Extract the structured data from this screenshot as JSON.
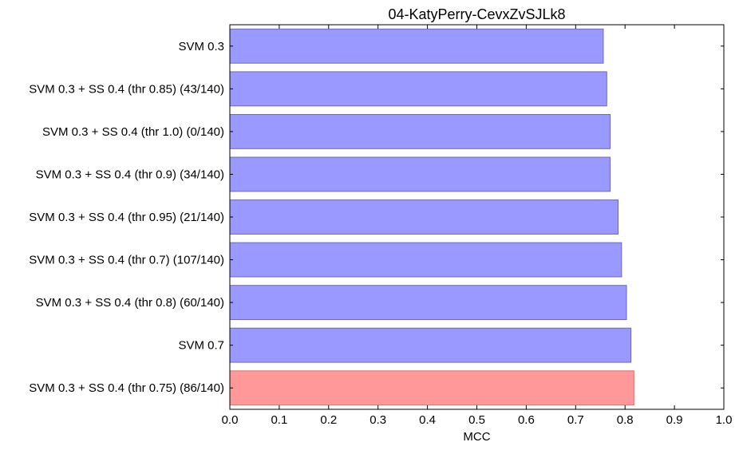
{
  "chart_data": {
    "type": "bar",
    "orientation": "horizontal",
    "title": "04-KatyPerry-CevxZvSJLk8",
    "xlabel": "MCC",
    "ylabel": "",
    "xlim": [
      0.0,
      1.0
    ],
    "xticks": [
      "0.0",
      "0.1",
      "0.2",
      "0.3",
      "0.4",
      "0.5",
      "0.6",
      "0.7",
      "0.8",
      "0.9",
      "1.0"
    ],
    "grid": false,
    "colors": {
      "default": "#9999ff",
      "highlight": "#ff9999",
      "edge_default": "#6b6bb3",
      "edge_highlight": "#e07070"
    },
    "categories": [
      "SVM 0.3",
      "SVM 0.3 + SS 0.4 (thr 0.85) (43/140)",
      "SVM 0.3 + SS 0.4 (thr 1.0) (0/140)",
      "SVM 0.3 + SS 0.4 (thr 0.9) (34/140)",
      "SVM 0.3 + SS 0.4 (thr 0.95) (21/140)",
      "SVM 0.3 + SS 0.4 (thr 0.7) (107/140)",
      "SVM 0.3 + SS 0.4 (thr 0.8) (60/140)",
      "SVM 0.7",
      "SVM 0.3 + SS 0.4 (thr 0.75) (86/140)"
    ],
    "values": [
      0.756,
      0.763,
      0.77,
      0.77,
      0.786,
      0.793,
      0.803,
      0.812,
      0.818
    ],
    "highlight_index": 8
  }
}
